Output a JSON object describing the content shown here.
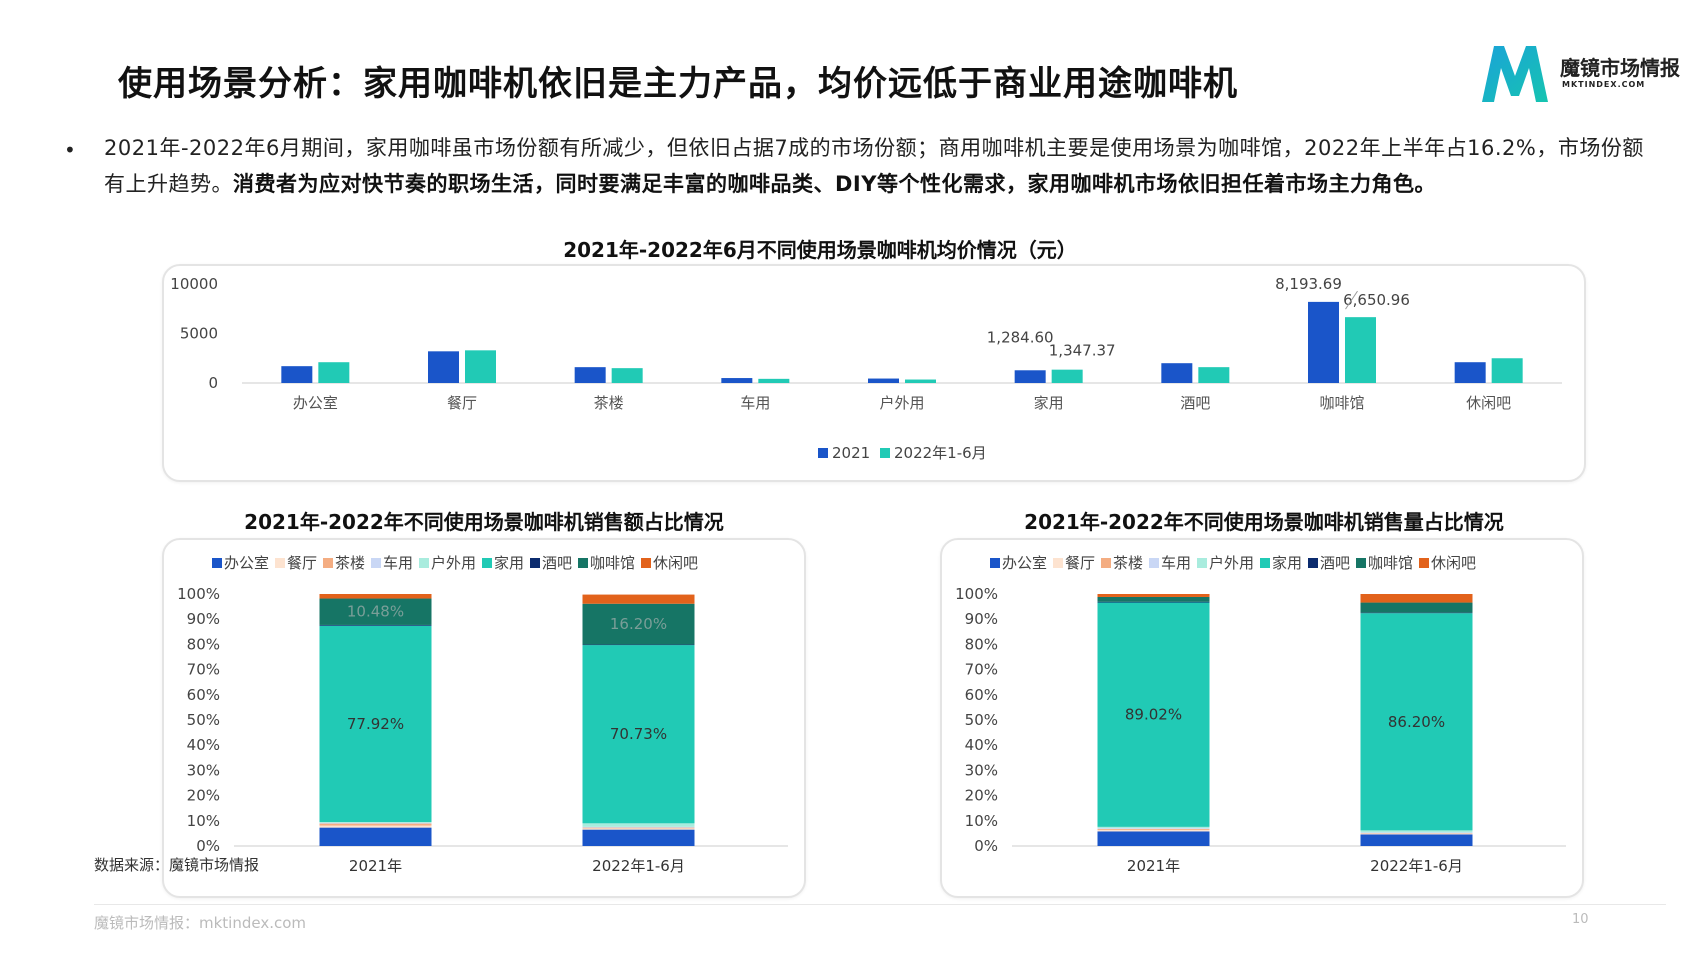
{
  "title": "使用场景分析：家用咖啡机依旧是主力产品，均价远低于商业用途咖啡机",
  "logo": {
    "name": "魔镜市场情报",
    "url": "MKTINDEX.COM",
    "colors": [
      "#1aa3d8",
      "#16c4b0"
    ]
  },
  "bullet": {
    "text_normal": "2021年-2022年6月期间，家用咖啡虽市场份额有所减少，但依旧占据7成的市场份额；商用咖啡机主要是使用场景为咖啡馆，2022年上半年占16.2%，市场份额有上升趋势。",
    "text_bold": "消费者为应对快节奏的职场生活，同时要满足丰富的咖啡品类、DIY等个性化需求，家用咖啡机市场依旧担任着市场主力角色。"
  },
  "source": "数据来源：魔镜市场情报",
  "footer": "魔镜市场情报：mktindex.com",
  "page_number": "10",
  "colors": {
    "办公室": "#1a55c9",
    "餐厅": "#fde3d0",
    "茶楼": "#f4ad82",
    "车用": "#c9d7f5",
    "户外用": "#a9ecde",
    "家用": "#21cab5",
    "酒吧": "#0b2b6e",
    "咖啡馆": "#167565",
    "休闲吧": "#e2621b",
    "series2021": "#1a55c9",
    "series2022": "#21cab5"
  },
  "chart_data": [
    {
      "type": "bar",
      "title": "2021年-2022年6月不同使用场景咖啡机均价情况（元）",
      "categories": [
        "办公室",
        "餐厅",
        "茶楼",
        "车用",
        "户外用",
        "家用",
        "酒吧",
        "咖啡馆",
        "休闲吧"
      ],
      "series": [
        {
          "name": "2021",
          "values": [
            1700,
            3200,
            1600,
            500,
            450,
            1284.6,
            2000,
            8193.69,
            2100
          ]
        },
        {
          "name": "2022年1-6月",
          "values": [
            2100,
            3300,
            1500,
            420,
            350,
            1347.37,
            1600,
            6650.96,
            2500
          ]
        }
      ],
      "data_labels": [
        {
          "series": 0,
          "index": 5,
          "text": "1,284.60"
        },
        {
          "series": 1,
          "index": 5,
          "text": "1,347.37"
        },
        {
          "series": 0,
          "index": 7,
          "text": "8,193.69"
        },
        {
          "series": 1,
          "index": 7,
          "text": "6,650.96"
        }
      ],
      "yticks": [
        "0",
        "5000",
        "10000"
      ],
      "ylim": [
        0,
        10000
      ],
      "legend": "bottom",
      "grid": false
    },
    {
      "type": "bar",
      "stacked": true,
      "title": "2021年-2022年不同使用场景咖啡机销售额占比情况",
      "categories": [
        "2021年",
        "2022年1-6月"
      ],
      "series": [
        {
          "name": "办公室",
          "values": [
            7.3,
            6.5
          ]
        },
        {
          "name": "餐厅",
          "values": [
            0.8,
            0.5
          ]
        },
        {
          "name": "茶楼",
          "values": [
            0.8,
            0.3
          ]
        },
        {
          "name": "车用",
          "values": [
            0.3,
            0.3
          ]
        },
        {
          "name": "户外用",
          "values": [
            0.3,
            1.4
          ]
        },
        {
          "name": "家用",
          "values": [
            77.92,
            70.73
          ]
        },
        {
          "name": "酒吧",
          "values": [
            0.3,
            0.2
          ]
        },
        {
          "name": "咖啡馆",
          "values": [
            10.48,
            16.2
          ]
        },
        {
          "name": "休闲吧",
          "values": [
            1.8,
            3.64
          ]
        }
      ],
      "data_labels": [
        {
          "series": 5,
          "index": 0,
          "text": "77.92%"
        },
        {
          "series": 5,
          "index": 1,
          "text": "70.73%"
        },
        {
          "series": 7,
          "index": 0,
          "text": "10.48%"
        },
        {
          "series": 7,
          "index": 1,
          "text": "16.20%"
        }
      ],
      "yticks": [
        "0%",
        "10%",
        "20%",
        "30%",
        "40%",
        "50%",
        "60%",
        "70%",
        "80%",
        "90%",
        "100%"
      ],
      "ylim": [
        0,
        100
      ],
      "legend": "top",
      "grid": false
    },
    {
      "type": "bar",
      "stacked": true,
      "title": "2021年-2022年不同使用场景咖啡机销售量占比情况",
      "categories": [
        "2021年",
        "2022年1-6月"
      ],
      "series": [
        {
          "name": "办公室",
          "values": [
            5.8,
            4.6
          ]
        },
        {
          "name": "餐厅",
          "values": [
            0.6,
            0.3
          ]
        },
        {
          "name": "茶楼",
          "values": [
            0.4,
            0.2
          ]
        },
        {
          "name": "车用",
          "values": [
            0.3,
            0.3
          ]
        },
        {
          "name": "户外用",
          "values": [
            0.5,
            0.8
          ]
        },
        {
          "name": "家用",
          "values": [
            89.02,
            86.2
          ]
        },
        {
          "name": "酒吧",
          "values": [
            0.3,
            0.2
          ]
        },
        {
          "name": "咖啡馆",
          "values": [
            1.9,
            4.0
          ]
        },
        {
          "name": "休闲吧",
          "values": [
            1.18,
            3.4
          ]
        }
      ],
      "data_labels": [
        {
          "series": 5,
          "index": 0,
          "text": "89.02%"
        },
        {
          "series": 5,
          "index": 1,
          "text": "86.20%"
        }
      ],
      "yticks": [
        "0%",
        "10%",
        "20%",
        "30%",
        "40%",
        "50%",
        "60%",
        "70%",
        "80%",
        "90%",
        "100%"
      ],
      "ylim": [
        0,
        100
      ],
      "legend": "top",
      "grid": false
    }
  ]
}
